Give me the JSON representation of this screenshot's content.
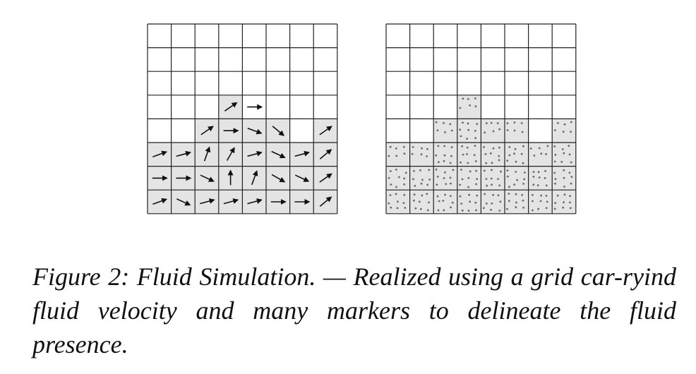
{
  "figure": {
    "caption": "Figure 2: Fluid Simulation. — Realized using a grid car-ryind fluid velocity and many markers to delineate the fluid presence.",
    "grid": {
      "cols": 8,
      "rows": 8
    },
    "colors": {
      "fluid": "#e4e4e4",
      "line": "#222222",
      "arrow": "#111111",
      "marker": "#6a6a6a",
      "background": "#ffffff"
    },
    "fluid_heights": [
      3,
      3,
      4,
      5,
      4,
      4,
      3,
      4
    ],
    "left_panel": {
      "velocity_arrows": [
        {
          "col": 0,
          "row": 2,
          "angle": -20
        },
        {
          "col": 1,
          "row": 2,
          "angle": -15
        },
        {
          "col": 2,
          "row": 2,
          "angle": -70
        },
        {
          "col": 3,
          "row": 2,
          "angle": -60
        },
        {
          "col": 4,
          "row": 2,
          "angle": -15
        },
        {
          "col": 5,
          "row": 2,
          "angle": 25
        },
        {
          "col": 6,
          "row": 2,
          "angle": -15
        },
        {
          "col": 7,
          "row": 2,
          "angle": -40
        },
        {
          "col": 0,
          "row": 1,
          "angle": 0
        },
        {
          "col": 1,
          "row": 1,
          "angle": 0
        },
        {
          "col": 2,
          "row": 1,
          "angle": 25
        },
        {
          "col": 3,
          "row": 1,
          "angle": -90
        },
        {
          "col": 4,
          "row": 1,
          "angle": -70
        },
        {
          "col": 5,
          "row": 1,
          "angle": 30
        },
        {
          "col": 6,
          "row": 1,
          "angle": 25
        },
        {
          "col": 7,
          "row": 1,
          "angle": -35
        },
        {
          "col": 0,
          "row": 0,
          "angle": -20
        },
        {
          "col": 1,
          "row": 0,
          "angle": 25
        },
        {
          "col": 2,
          "row": 0,
          "angle": -15
        },
        {
          "col": 3,
          "row": 0,
          "angle": -15
        },
        {
          "col": 4,
          "row": 0,
          "angle": -15
        },
        {
          "col": 5,
          "row": 0,
          "angle": 0
        },
        {
          "col": 6,
          "row": 0,
          "angle": 0
        },
        {
          "col": 7,
          "row": 0,
          "angle": -40
        },
        {
          "col": 2,
          "row": 3,
          "angle": -35
        },
        {
          "col": 3,
          "row": 3,
          "angle": 0
        },
        {
          "col": 4,
          "row": 3,
          "angle": 20
        },
        {
          "col": 5,
          "row": 3,
          "angle": 40
        },
        {
          "col": 7,
          "row": 3,
          "angle": -35
        },
        {
          "col": 3,
          "row": 4,
          "angle": -35
        },
        {
          "col": 4,
          "row": 4,
          "angle": 0
        }
      ]
    },
    "right_panel": {
      "marker_density": 9
    }
  }
}
